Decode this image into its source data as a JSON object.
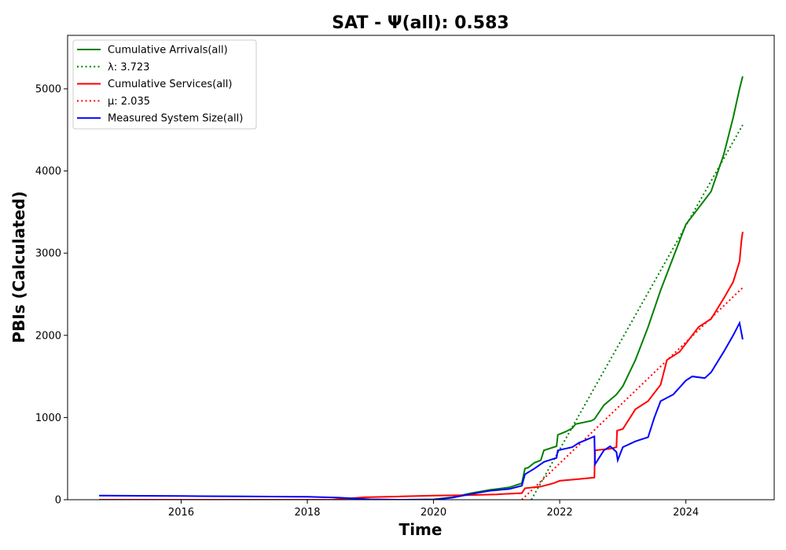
{
  "chart_data": {
    "type": "line",
    "title": "SAT -  Ψ(all): 0.583",
    "xlabel": "Time",
    "ylabel": "PBIs (Calculated)",
    "xlim": [
      2014.2,
      2025.4
    ],
    "ylim": [
      0,
      5650
    ],
    "x_ticks": [
      2016,
      2018,
      2020,
      2022,
      2024
    ],
    "x_tick_labels": [
      "2016",
      "2018",
      "2020",
      "2022",
      "2024"
    ],
    "y_ticks": [
      0,
      1000,
      2000,
      3000,
      4000,
      5000
    ],
    "y_tick_labels": [
      "0",
      "1000",
      "2000",
      "3000",
      "4000",
      "5000"
    ],
    "grid": false,
    "legend_position": "top-left",
    "series": [
      {
        "name": "Cumulative Arrivals(all)",
        "color": "#008000",
        "style": "solid",
        "x": [
          2014.7,
          2016.0,
          2018.0,
          2019.0,
          2019.5,
          2020.0,
          2020.3,
          2020.6,
          2020.9,
          2021.2,
          2021.4,
          2021.45,
          2021.5,
          2021.6,
          2021.7,
          2021.75,
          2021.95,
          2021.97,
          2022.1,
          2022.2,
          2022.25,
          2022.5,
          2022.55,
          2022.7,
          2022.9,
          2023.0,
          2023.2,
          2023.4,
          2023.6,
          2023.8,
          2024.0,
          2024.2,
          2024.4,
          2024.6,
          2024.75,
          2024.85,
          2024.9
        ],
        "y": [
          0,
          0,
          0,
          0,
          0,
          5,
          30,
          80,
          120,
          150,
          200,
          380,
          390,
          450,
          480,
          600,
          650,
          790,
          830,
          870,
          920,
          960,
          980,
          1150,
          1280,
          1380,
          1700,
          2100,
          2550,
          2950,
          3350,
          3550,
          3750,
          4200,
          4650,
          5000,
          5150
        ]
      },
      {
        "name": "λ: 3.723",
        "color": "#008000",
        "style": "dotted",
        "x": [
          2021.55,
          2024.9
        ],
        "y": [
          0,
          4560
        ]
      },
      {
        "name": "Cumulative Services(all)",
        "color": "#ff0000",
        "style": "solid",
        "x": [
          2014.7,
          2017.0,
          2018.4,
          2018.9,
          2019.5,
          2020.0,
          2020.5,
          2021.0,
          2021.4,
          2021.45,
          2021.7,
          2021.9,
          2022.0,
          2022.3,
          2022.55,
          2022.56,
          2022.8,
          2022.9,
          2022.91,
          2023.0,
          2023.2,
          2023.4,
          2023.6,
          2023.7,
          2023.9,
          2024.0,
          2024.2,
          2024.4,
          2024.6,
          2024.75,
          2024.85,
          2024.88,
          2024.9
        ],
        "y": [
          0,
          0,
          0,
          30,
          40,
          50,
          55,
          65,
          80,
          140,
          160,
          200,
          230,
          250,
          270,
          600,
          620,
          640,
          840,
          860,
          1100,
          1200,
          1400,
          1700,
          1800,
          1900,
          2100,
          2200,
          2450,
          2650,
          2900,
          3150,
          3260
        ]
      },
      {
        "name": "μ: 2.035",
        "color": "#ff0000",
        "style": "dotted",
        "x": [
          2021.4,
          2024.9
        ],
        "y": [
          0,
          2580
        ]
      },
      {
        "name": "Measured System Size(all)",
        "color": "#0000ff",
        "style": "solid",
        "x": [
          2014.7,
          2016.0,
          2017.0,
          2018.0,
          2018.5,
          2019.0,
          2019.5,
          2020.0,
          2020.3,
          2020.6,
          2020.9,
          2021.2,
          2021.4,
          2021.45,
          2021.6,
          2021.75,
          2021.95,
          2021.97,
          2022.2,
          2022.3,
          2022.55,
          2022.56,
          2022.7,
          2022.8,
          2022.9,
          2022.92,
          2023.0,
          2023.2,
          2023.4,
          2023.5,
          2023.6,
          2023.8,
          2024.0,
          2024.1,
          2024.3,
          2024.4,
          2024.6,
          2024.75,
          2024.85,
          2024.9
        ],
        "y": [
          50,
          45,
          40,
          35,
          25,
          5,
          0,
          0,
          25,
          70,
          110,
          130,
          170,
          310,
          380,
          460,
          510,
          600,
          640,
          690,
          770,
          430,
          600,
          650,
          580,
          480,
          640,
          710,
          760,
          1000,
          1200,
          1280,
          1450,
          1500,
          1480,
          1550,
          1800,
          2000,
          2150,
          1950
        ]
      }
    ]
  }
}
